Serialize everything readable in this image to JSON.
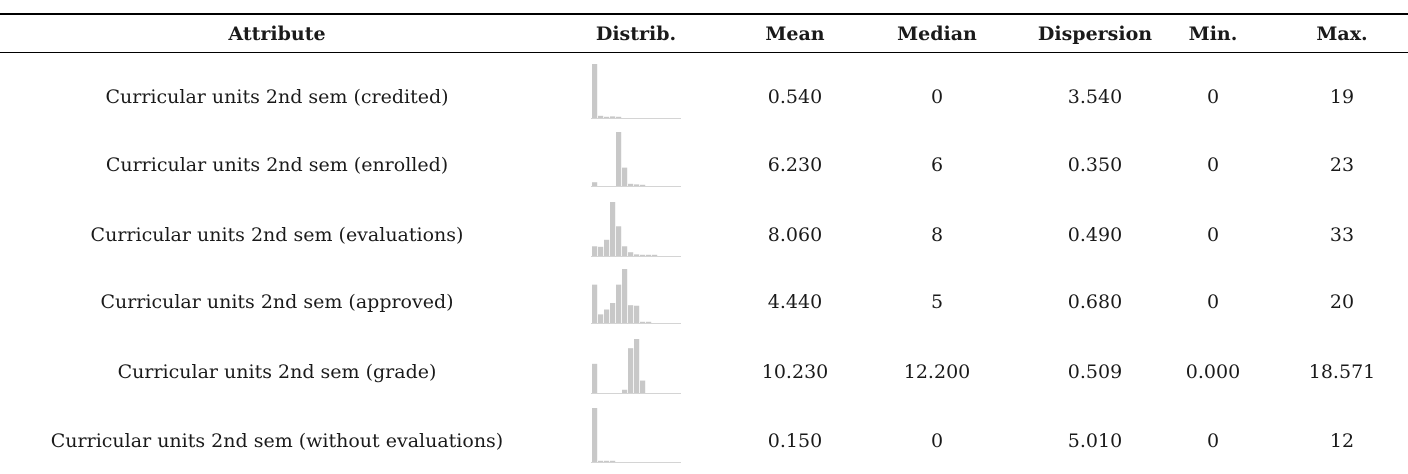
{
  "table": {
    "headers": [
      "Attribute",
      "Distrib.",
      "Mean",
      "Median",
      "Dispersion",
      "Min.",
      "Max."
    ],
    "rows": [
      {
        "attribute": "Curricular units 2nd sem (credited)",
        "mean": "0.540",
        "median": "0",
        "dispersion": "3.540",
        "min": "0",
        "max": "19",
        "distrib": [
          1.0,
          0.04,
          0.02,
          0.03,
          0.02,
          0,
          0,
          0,
          0,
          0,
          0,
          0,
          0,
          0,
          0
        ]
      },
      {
        "attribute": "Curricular units 2nd sem (enrolled)",
        "mean": "6.230",
        "median": "6",
        "dispersion": "0.350",
        "min": "0",
        "max": "23",
        "distrib": [
          0.07,
          0,
          0,
          0,
          1.0,
          0.34,
          0.04,
          0.03,
          0.01,
          0,
          0,
          0,
          0,
          0,
          0
        ]
      },
      {
        "attribute": "Curricular units 2nd sem (evaluations)",
        "mean": "8.060",
        "median": "8",
        "dispersion": "0.490",
        "min": "0",
        "max": "33",
        "distrib": [
          0.18,
          0.17,
          0.3,
          1.0,
          0.55,
          0.18,
          0.07,
          0.03,
          0.02,
          0.01,
          0.01,
          0,
          0,
          0,
          0
        ]
      },
      {
        "attribute": "Curricular units 2nd sem (approved)",
        "mean": "4.440",
        "median": "5",
        "dispersion": "0.680",
        "min": "0",
        "max": "20",
        "distrib": [
          0.71,
          0.16,
          0.25,
          0.37,
          0.71,
          1.0,
          0.33,
          0.32,
          0.02,
          0.01,
          0,
          0,
          0,
          0,
          0
        ]
      },
      {
        "attribute": "Curricular units 2nd sem (grade)",
        "mean": "10.230",
        "median": "12.200",
        "dispersion": "0.509",
        "min": "0.000",
        "max": "18.571",
        "distrib": [
          0.54,
          0,
          0,
          0,
          0,
          0.06,
          0.83,
          1.0,
          0.23,
          0,
          0,
          0,
          0,
          0,
          0
        ]
      },
      {
        "attribute": "Curricular units 2nd sem (without evaluations)",
        "mean": "0.150",
        "median": "0",
        "dispersion": "5.010",
        "min": "0",
        "max": "12",
        "distrib": [
          1.0,
          0.02,
          0.02,
          0.01,
          0,
          0,
          0,
          0,
          0,
          0,
          0,
          0,
          0,
          0,
          0
        ]
      }
    ]
  },
  "colors": {
    "bar": "#c8c8c8",
    "baseline": "#d4d4d4",
    "rule": "#000000"
  }
}
